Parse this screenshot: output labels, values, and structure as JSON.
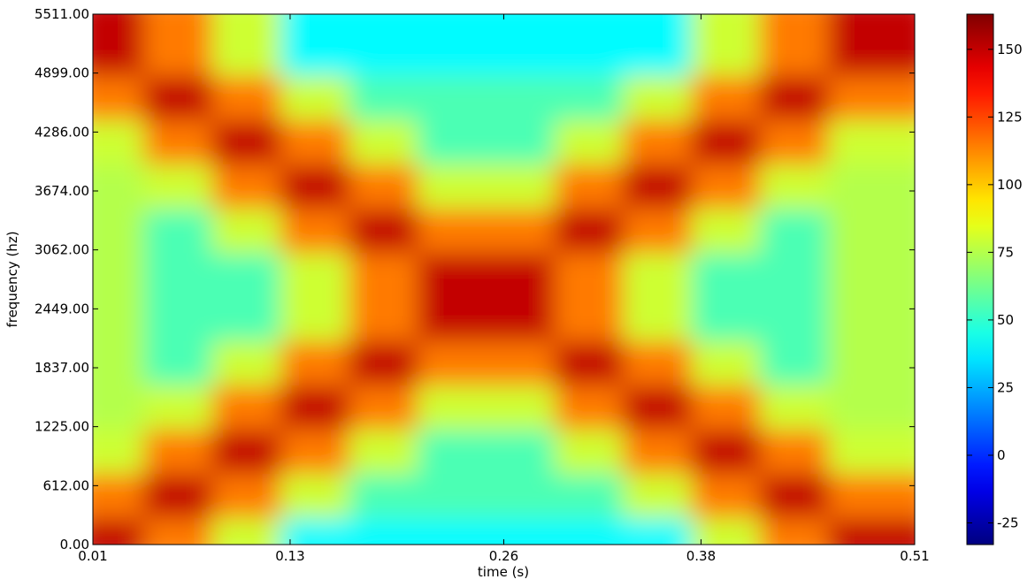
{
  "chart_data": {
    "type": "heatmap",
    "xlabel": "time (s)",
    "ylabel": "frequency (hz)",
    "xlim": [
      0.01,
      0.51
    ],
    "xticks": [
      0.01,
      0.13,
      0.26,
      0.38,
      0.51
    ],
    "ylim": [
      0,
      5511
    ],
    "yticks": [
      {
        "value": 0,
        "label": "0.00"
      },
      {
        "value": 612,
        "label": "612.00"
      },
      {
        "value": 1225,
        "label": "1225.00"
      },
      {
        "value": 1837,
        "label": "1837.00"
      },
      {
        "value": 2449,
        "label": "2449.00"
      },
      {
        "value": 3062,
        "label": "3062.00"
      },
      {
        "value": 3674,
        "label": "3674.00"
      },
      {
        "value": 4286,
        "label": "4286.00"
      },
      {
        "value": 4899,
        "label": "4899.00"
      },
      {
        "value": 5511,
        "label": "5511.00"
      }
    ],
    "z": [
      [
        150,
        115,
        80,
        40,
        40,
        40,
        40,
        40,
        40,
        80,
        115,
        150
      ],
      [
        115,
        150,
        115,
        80,
        55,
        55,
        55,
        55,
        80,
        115,
        150,
        115
      ],
      [
        80,
        115,
        150,
        115,
        80,
        55,
        55,
        80,
        115,
        150,
        115,
        80
      ],
      [
        75,
        80,
        115,
        150,
        115,
        80,
        80,
        115,
        150,
        115,
        80,
        75
      ],
      [
        75,
        55,
        80,
        115,
        150,
        115,
        115,
        150,
        115,
        80,
        55,
        75
      ],
      [
        75,
        55,
        55,
        80,
        115,
        150,
        150,
        115,
        80,
        55,
        55,
        75
      ],
      [
        75,
        55,
        55,
        80,
        115,
        150,
        150,
        115,
        80,
        55,
        55,
        75
      ],
      [
        75,
        55,
        80,
        115,
        150,
        115,
        115,
        150,
        115,
        80,
        55,
        75
      ],
      [
        75,
        80,
        115,
        150,
        115,
        80,
        80,
        115,
        150,
        115,
        80,
        75
      ],
      [
        80,
        115,
        150,
        115,
        80,
        55,
        55,
        80,
        115,
        150,
        115,
        80
      ],
      [
        115,
        150,
        115,
        80,
        55,
        55,
        55,
        55,
        80,
        115,
        150,
        115
      ],
      [
        150,
        115,
        80,
        40,
        40,
        40,
        40,
        40,
        40,
        80,
        115,
        150
      ]
    ],
    "colormap": "jet",
    "clim": [
      -33,
      163
    ],
    "colorbar_ticks": [
      -25,
      0,
      25,
      50,
      75,
      100,
      125,
      150
    ]
  }
}
